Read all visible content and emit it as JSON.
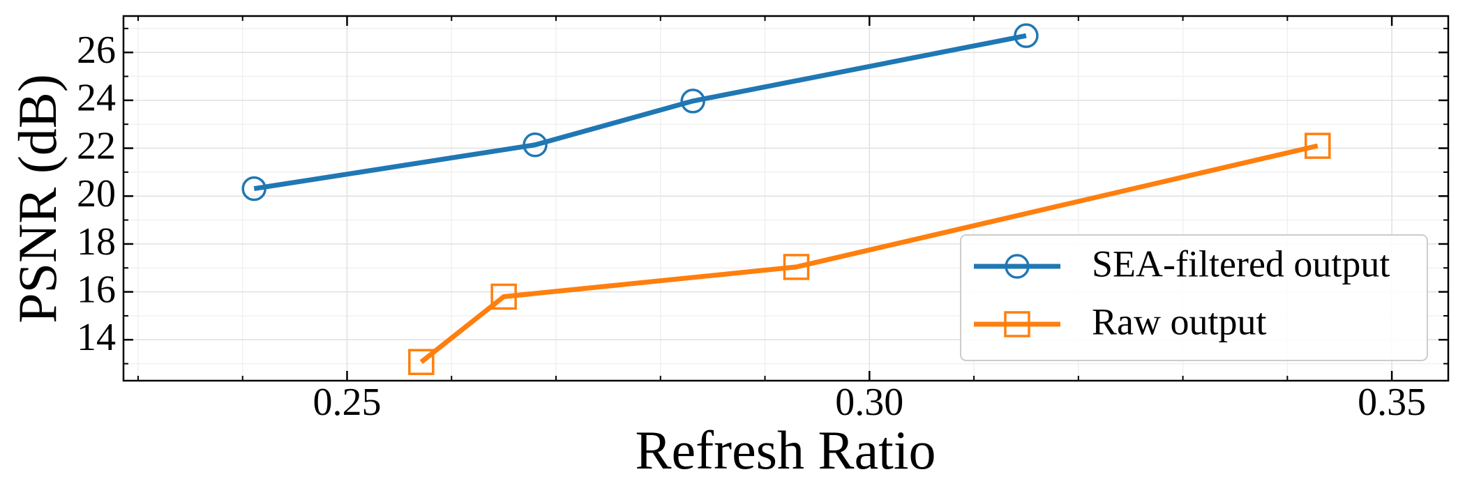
{
  "chart_data": {
    "type": "line",
    "x_label": "Refresh Ratio",
    "y_label": "PSNR (dB)",
    "series": [
      {
        "name": "SEA-filtered output",
        "color": "#1f77b4",
        "marker": "circle",
        "x": [
          0.2411,
          0.268,
          0.2831,
          0.315
        ],
        "values": [
          20.31,
          22.14,
          23.97,
          26.7
        ]
      },
      {
        "name": "Raw output",
        "color": "#ff7f0e",
        "marker": "square",
        "x": [
          0.2571,
          0.265,
          0.293,
          0.3429
        ],
        "values": [
          13.07,
          15.8,
          17.04,
          22.1
        ]
      }
    ],
    "xlim": [
      0.2286,
      0.3554
    ],
    "ylim": [
      12.29,
      27.52
    ],
    "xticks": [
      {
        "value": 0.25,
        "label": "0.25"
      },
      {
        "value": 0.3,
        "label": "0.30"
      },
      {
        "value": 0.35,
        "label": "0.35"
      }
    ],
    "yticks": [
      14,
      16,
      18,
      20,
      22,
      24,
      26
    ],
    "xminorticks": [
      0.23,
      0.24,
      0.26,
      0.27,
      0.28,
      0.29,
      0.31,
      0.32,
      0.33,
      0.34
    ],
    "yminorticks": [
      13,
      15,
      17,
      19,
      21,
      23,
      25,
      27
    ],
    "grid": true,
    "legend": "lower right"
  }
}
